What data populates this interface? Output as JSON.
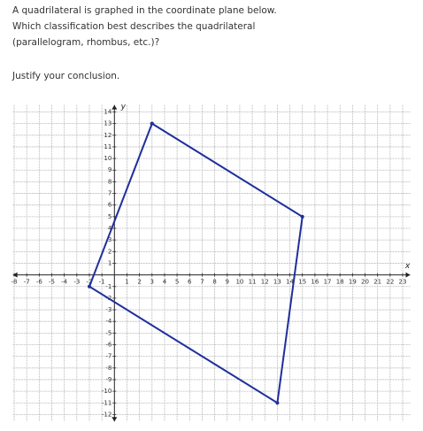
{
  "prompt": [
    "A quadrilateral is graphed in the coordinate plane below.",
    "Which classification best describes the quadrilateral",
    "(parallelogram, rhombus, etc.)?",
    "Justify your conclusion."
  ],
  "chart_data": {
    "type": "line",
    "x_label": "x",
    "y_label": "y",
    "x": [
      3,
      15,
      13,
      -2,
      3
    ],
    "series": [
      {
        "name": "quadrilateral",
        "color": "#1f2f9c",
        "values": [
          13,
          5,
          -11,
          -1,
          13
        ]
      }
    ],
    "xlim": [
      -8.1,
      23.6
    ],
    "ylim": [
      -12.6,
      14.6
    ],
    "xticks": [
      -8,
      -7,
      -6,
      -5,
      -4,
      -3,
      -2,
      -1,
      1,
      2,
      3,
      4,
      5,
      6,
      7,
      8,
      9,
      10,
      11,
      12,
      13,
      14,
      15,
      16,
      17,
      18,
      19,
      20,
      21,
      22,
      23
    ],
    "yticks": [
      -12,
      -11,
      -10,
      -9,
      -8,
      -7,
      -6,
      -5,
      -4,
      -3,
      -2,
      -1,
      1,
      2,
      3,
      4,
      5,
      6,
      7,
      8,
      9,
      10,
      11,
      12,
      13,
      14
    ],
    "grid": true
  }
}
